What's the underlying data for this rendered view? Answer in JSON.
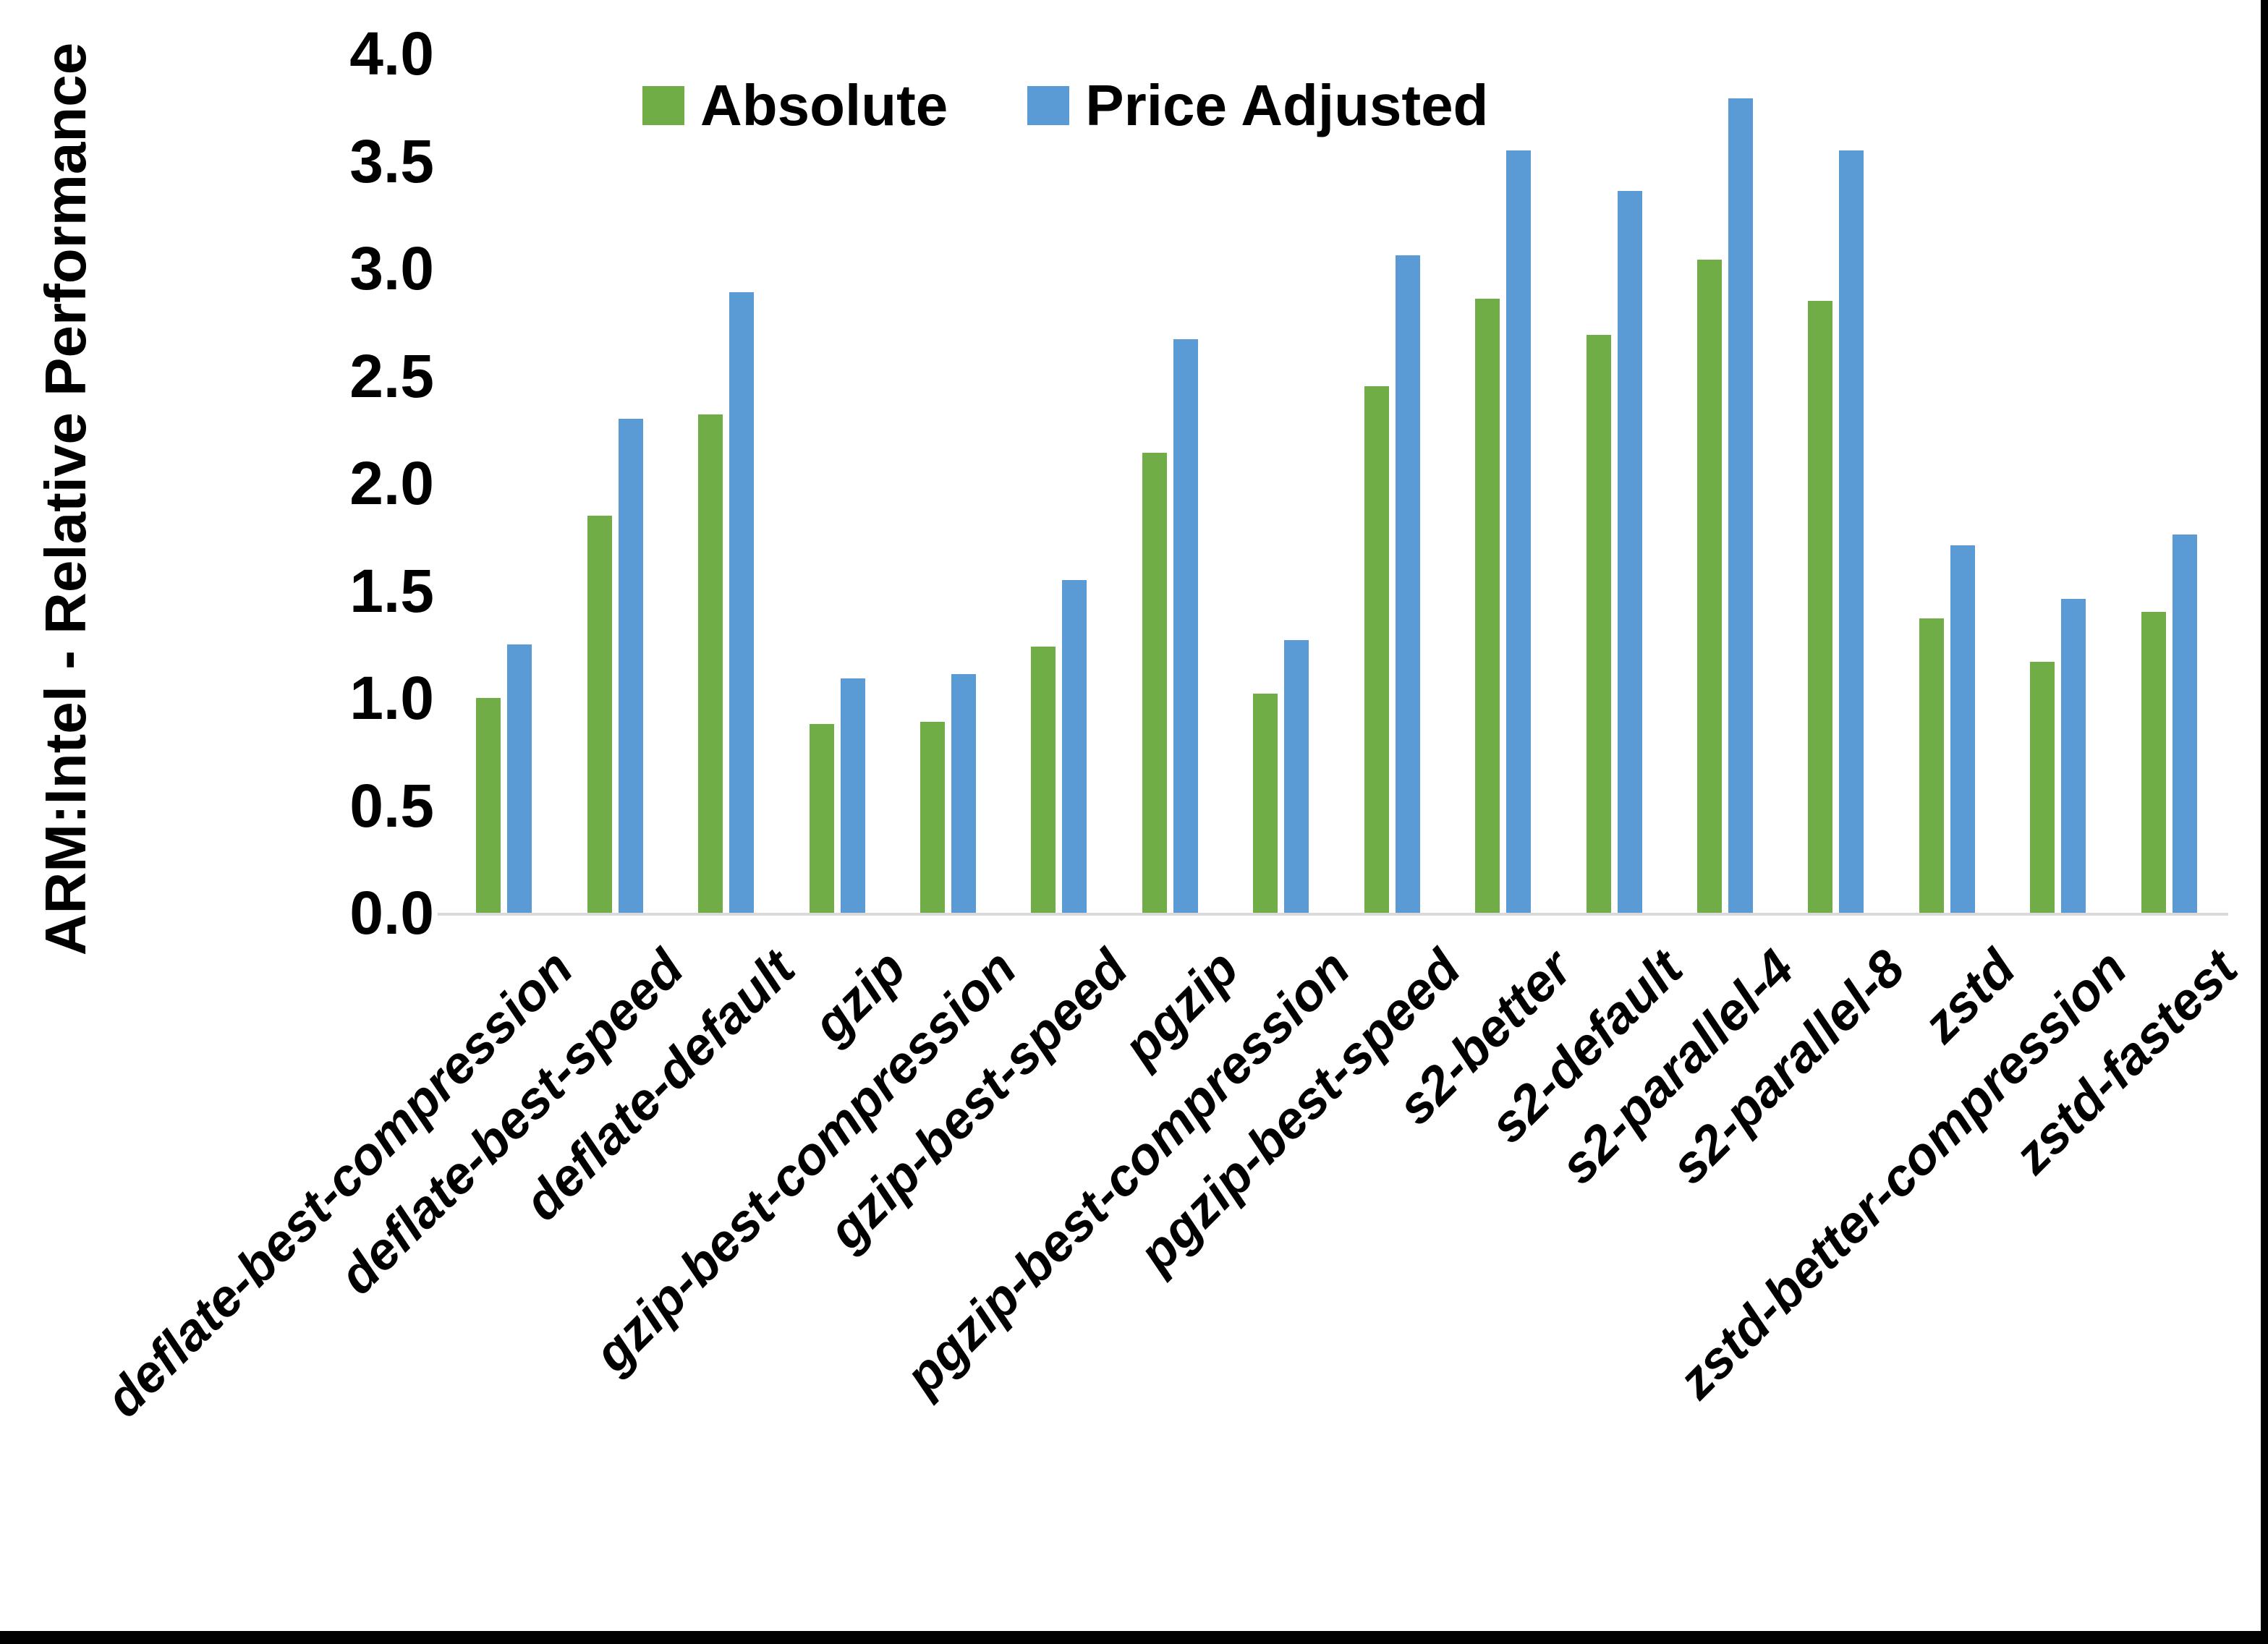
{
  "chart_data": {
    "type": "bar",
    "title": "",
    "ylabel": "ARM:Intel - Relative Performance",
    "xlabel": "",
    "ylim": [
      0.0,
      4.0
    ],
    "ytick_step": 0.5,
    "ytick_labels": [
      "0.0",
      "0.5",
      "1.0",
      "1.5",
      "2.0",
      "2.5",
      "3.0",
      "3.5",
      "4.0"
    ],
    "grid": "off",
    "legend_position": "top-center-inside",
    "categories": [
      "deflate-best-compression",
      "deflate-best-speed",
      "deflate-default",
      "gzip",
      "gzip-best-compression",
      "gzip-best-speed",
      "pgzip",
      "pgzip-best-compression",
      "pgzip-best-speed",
      "s2-better",
      "s2-default",
      "s2-parallel-4",
      "s2-parallel-8",
      "zstd",
      "zstd-better-compression",
      "zstd-fastest"
    ],
    "series": [
      {
        "name": "Absolute",
        "color": "#70AD47",
        "values": [
          1.0,
          1.85,
          2.32,
          0.88,
          0.89,
          1.24,
          2.14,
          1.02,
          2.45,
          2.86,
          2.69,
          3.04,
          2.85,
          1.37,
          1.17,
          1.4
        ]
      },
      {
        "name": "Price Adjusted",
        "color": "#5B9BD5",
        "values": [
          1.25,
          2.3,
          2.89,
          1.09,
          1.11,
          1.55,
          2.67,
          1.27,
          3.06,
          3.55,
          3.36,
          3.79,
          3.55,
          1.71,
          1.46,
          1.76
        ]
      }
    ],
    "colors": {
      "axis_line": "#d9d9d9",
      "text": "#000000",
      "background": "#ffffff",
      "frame_edge": "#000000"
    }
  },
  "legend": {
    "absolute_label": "Absolute",
    "price_adjusted_label": "Price Adjusted"
  },
  "axes": {
    "y_title": "ARM:Intel - Relative Performance"
  }
}
